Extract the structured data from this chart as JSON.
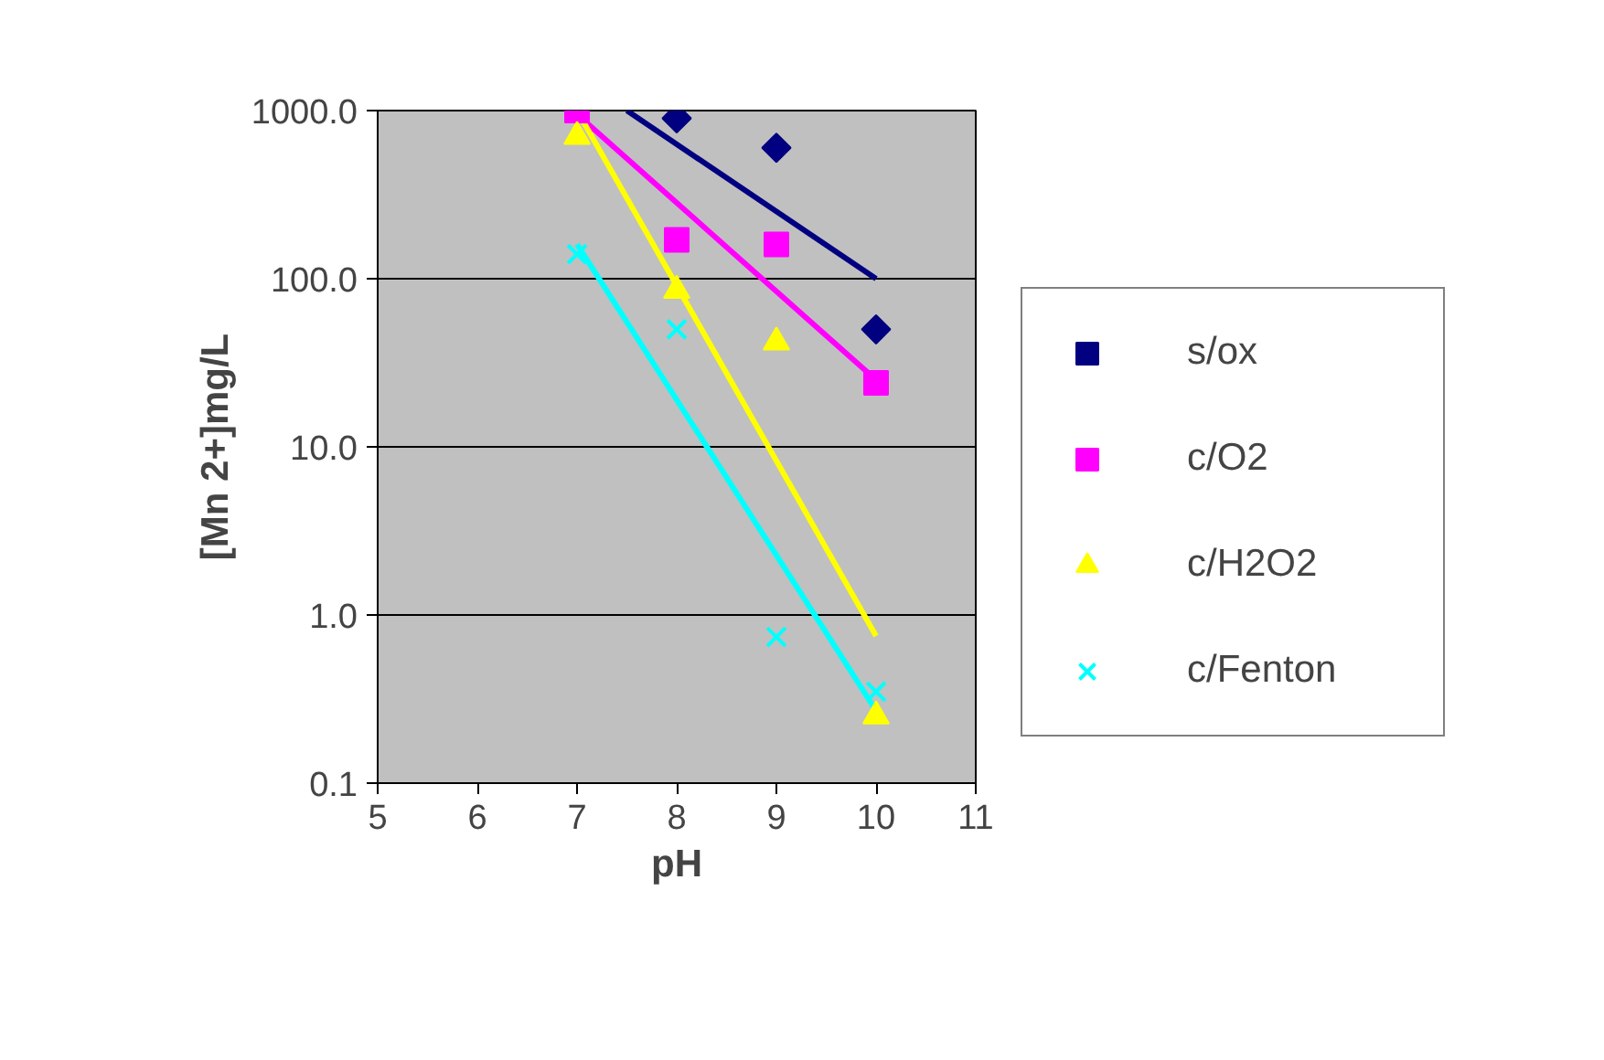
{
  "chart_data": {
    "type": "scatter",
    "xlabel": "pH",
    "ylabel": "[Mn 2+]mg/L",
    "log": "y",
    "grid": "y",
    "legend": "right",
    "xlim": [
      5,
      11
    ],
    "xticks": [
      5,
      6,
      7,
      8,
      9,
      10,
      11
    ],
    "ylim": [
      0.1,
      1000
    ],
    "yticks": [
      {
        "value": 0.1,
        "label": "0.1"
      },
      {
        "value": 1,
        "label": "1.0"
      },
      {
        "value": 10,
        "label": "10.0"
      },
      {
        "value": 100,
        "label": "100.0"
      },
      {
        "value": 1000,
        "label": "1000.0"
      }
    ],
    "series": [
      {
        "name": "s/ox",
        "color": "#000080",
        "marker": "diamond",
        "x": [
          8,
          9,
          10
        ],
        "values": [
          900,
          600,
          50
        ]
      },
      {
        "name": "c/O2",
        "color": "#ff00ff",
        "marker": "square",
        "x": [
          7,
          8,
          9,
          10
        ],
        "values": [
          1000,
          170,
          160,
          24
        ]
      },
      {
        "name": "c/H2O2",
        "color": "#ffff00",
        "marker": "triangle",
        "x": [
          7,
          8,
          9,
          10
        ],
        "values": [
          700,
          85,
          42,
          0.25
        ]
      },
      {
        "name": "c/Fenton",
        "color": "#00ffff",
        "marker": "cross",
        "x": [
          7,
          8,
          9,
          10
        ],
        "values": [
          140,
          50,
          0.74,
          0.35
        ]
      },
      {
        "type": "line",
        "color": "#000080",
        "x": [
          7.5,
          10
        ],
        "values": [
          1000,
          100
        ]
      },
      {
        "type": "line",
        "color": "#ff00ff",
        "x": [
          7,
          10
        ],
        "values": [
          950,
          25
        ]
      },
      {
        "type": "line",
        "color": "#ffff00",
        "x": [
          7,
          10
        ],
        "values": [
          1000,
          0.75
        ]
      },
      {
        "type": "line",
        "color": "#00ffff",
        "x": [
          7,
          10
        ],
        "values": [
          160,
          0.27
        ]
      }
    ]
  }
}
